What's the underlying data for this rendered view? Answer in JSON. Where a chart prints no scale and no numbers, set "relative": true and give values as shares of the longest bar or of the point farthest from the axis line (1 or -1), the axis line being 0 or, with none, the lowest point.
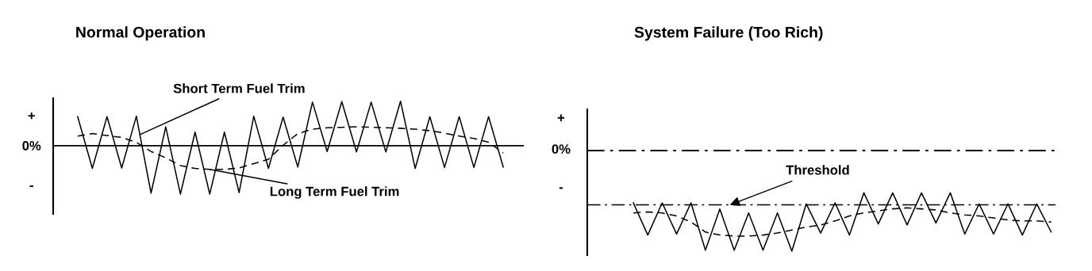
{
  "chart_data": [
    {
      "type": "line",
      "title": "Normal Operation",
      "relative": true,
      "categories": [
        null,
        null,
        null,
        null,
        null,
        null,
        null,
        null,
        null,
        null,
        null,
        null,
        null,
        null,
        null,
        null,
        null,
        null,
        null,
        null,
        null,
        null,
        null,
        null,
        null,
        null,
        null,
        null,
        null,
        null
      ],
      "series": [
        {
          "name": "Short Term Fuel Trim",
          "color": "#000000",
          "line_style": "solid",
          "values": [
            0.6,
            -0.47,
            0.6,
            -0.46,
            0.61,
            -0.98,
            0.39,
            -1,
            0.28,
            -1,
            0.28,
            -0.97,
            0.61,
            -0.47,
            0.59,
            -0.44,
            0.9,
            -0.12,
            0.91,
            -0.13,
            0.9,
            -0.13,
            0.92,
            -0.47,
            0.6,
            -0.45,
            0.6,
            -0.45,
            0.6,
            -0.44
          ]
        },
        {
          "name": "Long Term Fuel Trim",
          "color": "#000000",
          "line_style": "dashed",
          "values": [
            0.2,
            0.25,
            0.21,
            0.17,
            0.07,
            -0.12,
            -0.25,
            -0.41,
            -0.47,
            -0.49,
            -0.49,
            -0.46,
            -0.37,
            -0.28,
            0.01,
            0.25,
            0.34,
            0.37,
            0.38,
            0.39,
            0.38,
            0.37,
            0.36,
            0.34,
            0.31,
            0.26,
            0.2,
            0.15,
            0.07,
            -0.15
          ]
        }
      ],
      "annotations": [
        "+",
        "0%",
        "-"
      ],
      "ref_lines": [
        {
          "axis": "y",
          "value": 0,
          "color": "#000000",
          "line_style": "solid"
        }
      ],
      "legend": false,
      "grid": false
    },
    {
      "type": "line",
      "title": "System Failure (Too Rich)",
      "relative": true,
      "categories": [
        null,
        null,
        null,
        null,
        null,
        null,
        null,
        null,
        null,
        null,
        null,
        null,
        null,
        null,
        null,
        null,
        null,
        null,
        null,
        null,
        null,
        null,
        null,
        null,
        null,
        null,
        null,
        null,
        null,
        null
      ],
      "series": [
        {
          "color": "#000000",
          "line_style": "solid",
          "values": [
            -0.52,
            -0.84,
            -0.52,
            -0.83,
            -0.52,
            -0.99,
            -0.58,
            -0.99,
            -0.62,
            -0.99,
            -0.62,
            -1,
            -0.53,
            -0.82,
            -0.52,
            -0.84,
            -0.42,
            -0.73,
            -0.42,
            -0.74,
            -0.42,
            -0.72,
            -0.42,
            -0.83,
            -0.53,
            -0.83,
            -0.53,
            -0.84,
            -0.53,
            -0.81
          ]
        },
        {
          "color": "#000000",
          "line_style": "dashed",
          "values": [
            -0.62,
            -0.61,
            -0.62,
            -0.65,
            -0.71,
            -0.81,
            -0.84,
            -0.85,
            -0.85,
            -0.84,
            -0.82,
            -0.79,
            -0.76,
            -0.74,
            -0.7,
            -0.65,
            -0.62,
            -0.6,
            -0.58,
            -0.57,
            -0.58,
            -0.59,
            -0.62,
            -0.64,
            -0.65,
            -0.67,
            -0.69,
            -0.7,
            -0.7,
            -0.71
          ]
        }
      ],
      "annotations": [
        "+",
        "0%",
        "-"
      ],
      "ref_lines": [
        {
          "axis": "y",
          "value": 0,
          "color": "#000000",
          "line_style": "dashdot"
        },
        {
          "axis": "y",
          "value": -0.54,
          "label": "Threshold",
          "color": "#000000",
          "line_style": "dashdot"
        }
      ],
      "legend": false,
      "grid": false
    }
  ]
}
